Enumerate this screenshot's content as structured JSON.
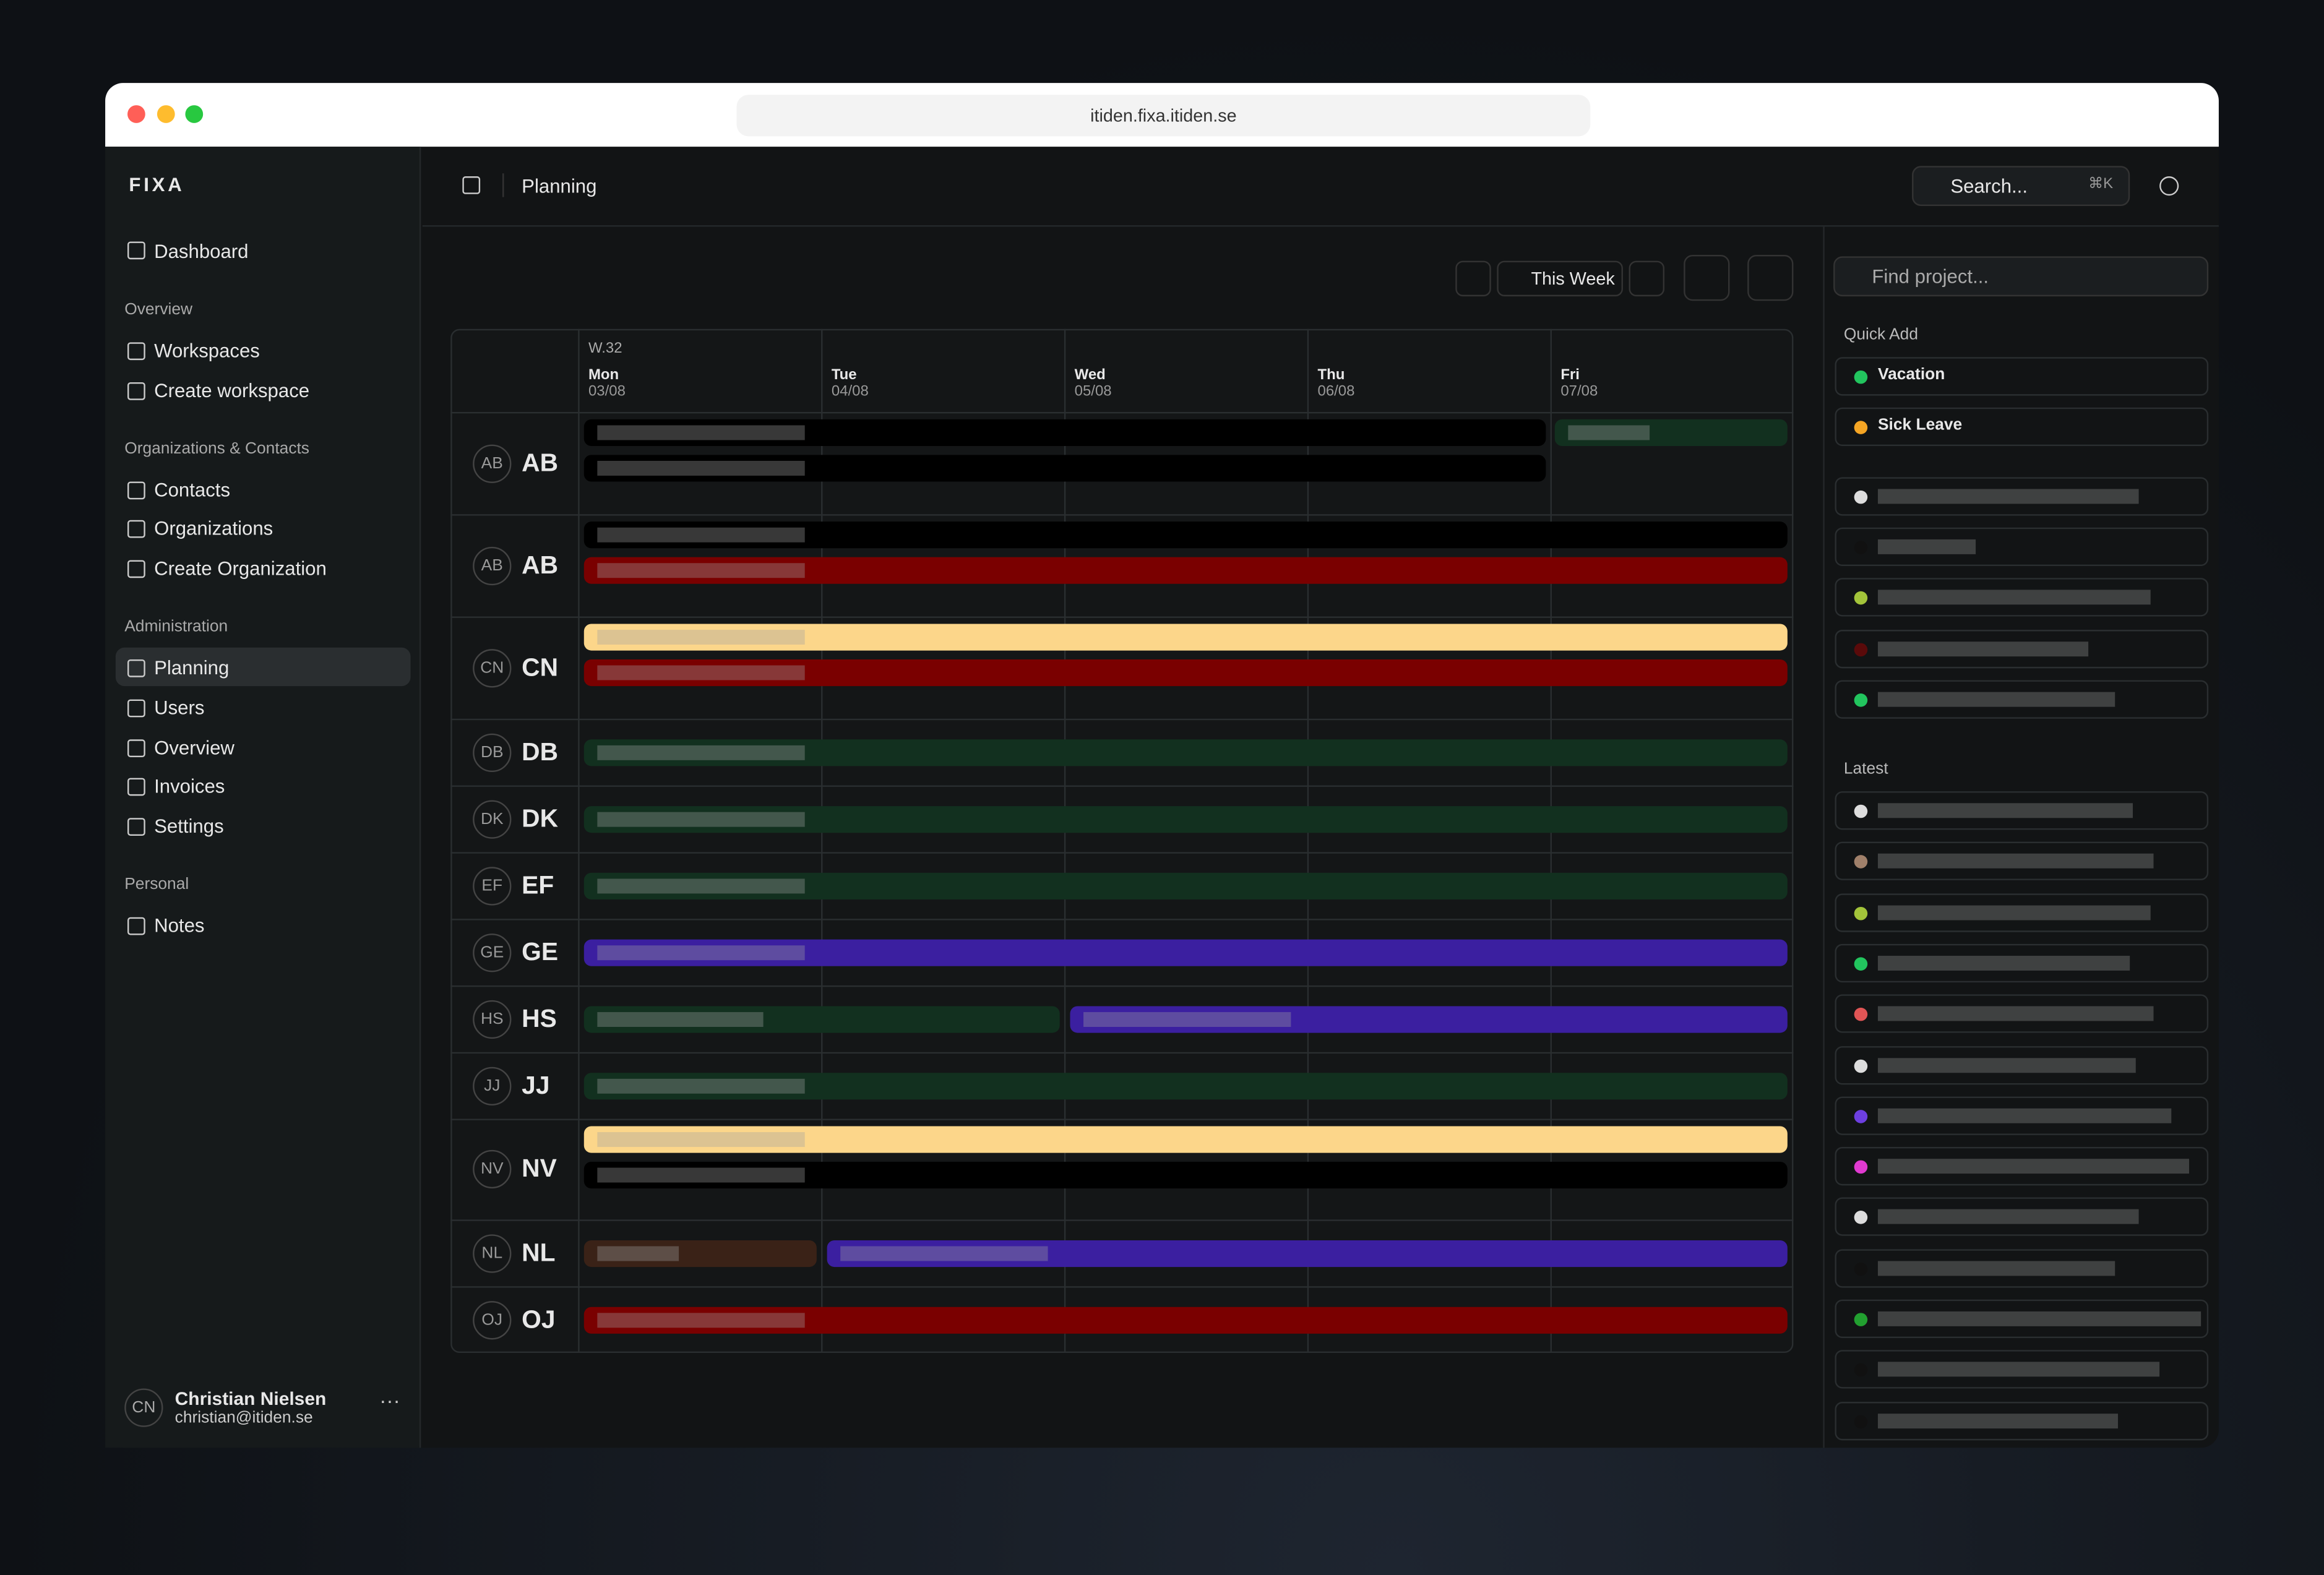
{
  "browser": {
    "url": "itiden.fixa.itiden.se"
  },
  "sidebar": {
    "brand": "FIXA",
    "dashboard": "Dashboard",
    "sections": [
      {
        "title": "Overview",
        "items": [
          "Workspaces",
          "Create workspace"
        ]
      },
      {
        "title": "Organizations & Contacts",
        "items": [
          "Contacts",
          "Organizations",
          "Create Organization"
        ]
      },
      {
        "title": "Administration",
        "items": [
          "Planning",
          "Users",
          "Overview",
          "Invoices",
          "Settings"
        ]
      },
      {
        "title": "Personal",
        "items": [
          "Notes"
        ]
      }
    ],
    "user": {
      "initials": "CN",
      "name": "Christian Nielsen",
      "email": "christian@itiden.se"
    }
  },
  "header": {
    "title": "Planning",
    "search": "Search...",
    "shortcut": "⌘K"
  },
  "toolbar": {
    "range": "This Week"
  },
  "calendar": {
    "week": "W.32",
    "days": [
      {
        "name": "Mon",
        "date": "03/08"
      },
      {
        "name": "Tue",
        "date": "04/08"
      },
      {
        "name": "Wed",
        "date": "05/08"
      },
      {
        "name": "Thu",
        "date": "06/08"
      },
      {
        "name": "Fri",
        "date": "07/08"
      }
    ],
    "rows": [
      {
        "avatar": "AB",
        "name": "AB"
      },
      {
        "avatar": "AB",
        "name": "AB"
      },
      {
        "avatar": "CN",
        "name": "CN"
      },
      {
        "avatar": "DB",
        "name": "DB"
      },
      {
        "avatar": "DK",
        "name": "DK"
      },
      {
        "avatar": "EF",
        "name": "EF"
      },
      {
        "avatar": "GE",
        "name": "GE"
      },
      {
        "avatar": "HS",
        "name": "HS"
      },
      {
        "avatar": "JJ",
        "name": "JJ"
      },
      {
        "avatar": "NV",
        "name": "NV"
      },
      {
        "avatar": "NL",
        "name": "NL"
      },
      {
        "avatar": "OJ",
        "name": "OJ"
      }
    ]
  },
  "panel": {
    "search_placeholder": "Find project...",
    "quick_add_title": "Quick Add",
    "quick_add": [
      "Vacation",
      "Sick Leave"
    ],
    "latest_title": "Latest"
  }
}
